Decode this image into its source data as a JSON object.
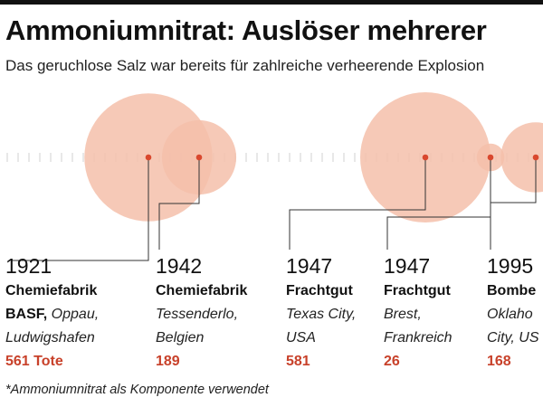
{
  "title": "Ammoniumnitrat: Auslöser mehrerer",
  "subtitle": "Das geruchlose Salz war bereits für zahlreiche verheerende Explosion",
  "footnote": "*Ammoniumnitrat als Komponente verwendet",
  "colors": {
    "bubble": "#f4bfaa",
    "marker": "#d9482e",
    "deaths": "#c8412a",
    "connector": "#333333",
    "ticks": "#d9d9d9"
  },
  "chart_data": {
    "type": "bubble-timeline",
    "size_encoding": "deaths",
    "events": [
      {
        "year": "1921",
        "name_bold": "Chemiefabrik",
        "line2_bold": "BASF,",
        "line2_italic": " Oppau,",
        "line3_italic": "Ludwigshafen",
        "deaths": 561,
        "deaths_label": "561 Tote"
      },
      {
        "year": "1942",
        "name_bold": "Chemiefabrik",
        "line2_bold": "",
        "line2_italic": "Tessenderlo,",
        "line3_italic": "Belgien",
        "deaths": 189,
        "deaths_label": "189"
      },
      {
        "year": "1947",
        "name_bold": "Frachtgut",
        "line2_bold": "",
        "line2_italic": "Texas City,",
        "line3_italic": "USA",
        "deaths": 581,
        "deaths_label": "581"
      },
      {
        "year": "1947",
        "name_bold": "Frachtgut",
        "line2_bold": "",
        "line2_italic": "Brest,",
        "line3_italic": "Frankreich",
        "deaths": 26,
        "deaths_label": "26"
      },
      {
        "year": "1995",
        "name_bold": "Bombe",
        "line2_bold": "",
        "line2_italic": "Oklaho",
        "line3_italic": "City, US",
        "deaths": 168,
        "deaths_label": "168"
      }
    ]
  }
}
